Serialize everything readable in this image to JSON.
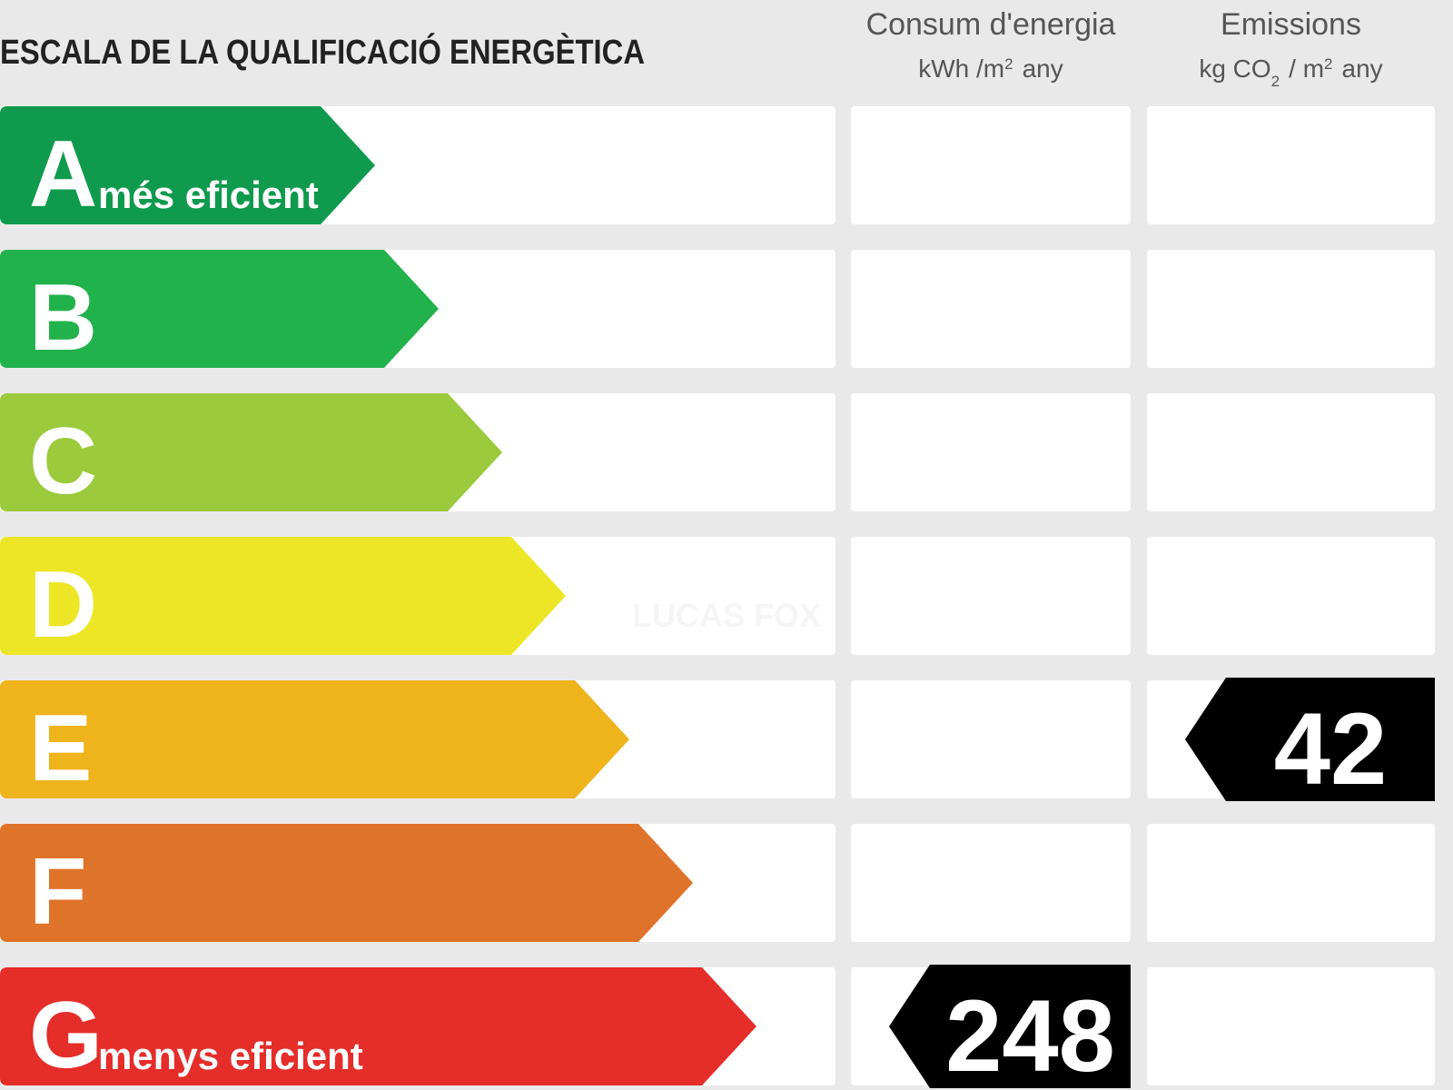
{
  "header": {
    "title": "ESCALA DE LA QUALIFICACIÓ ENERGÈTICA"
  },
  "columns": [
    {
      "heading": "Consum d'energia",
      "unit_parts": [
        {
          "text": "kWh /m"
        },
        {
          "text": "2",
          "sup": true
        },
        {
          "text": "any"
        }
      ]
    },
    {
      "heading": "Emissions",
      "unit_parts": [
        {
          "text": "kg CO"
        },
        {
          "text": "2",
          "sub": true
        },
        {
          "text": "/ m"
        },
        {
          "text": "2",
          "sup": true
        },
        {
          "text": "any"
        }
      ]
    }
  ],
  "rows": [
    {
      "letter": "A",
      "label": "més eficient",
      "color": "#0f9a4e"
    },
    {
      "letter": "B",
      "color": "#22b24c"
    },
    {
      "letter": "C",
      "color": "#9bca3c"
    },
    {
      "letter": "D",
      "color": "#ede626"
    },
    {
      "letter": "E",
      "color": "#efb31c"
    },
    {
      "letter": "F",
      "color": "#e0732a"
    },
    {
      "letter": "G",
      "label": "menys eficient",
      "color": "#e52d2a"
    }
  ],
  "ratings": [
    {
      "value": 248,
      "class": "G"
    },
    {
      "value": 42,
      "class": "E"
    }
  ],
  "watermark": "LUCAS FOX"
}
